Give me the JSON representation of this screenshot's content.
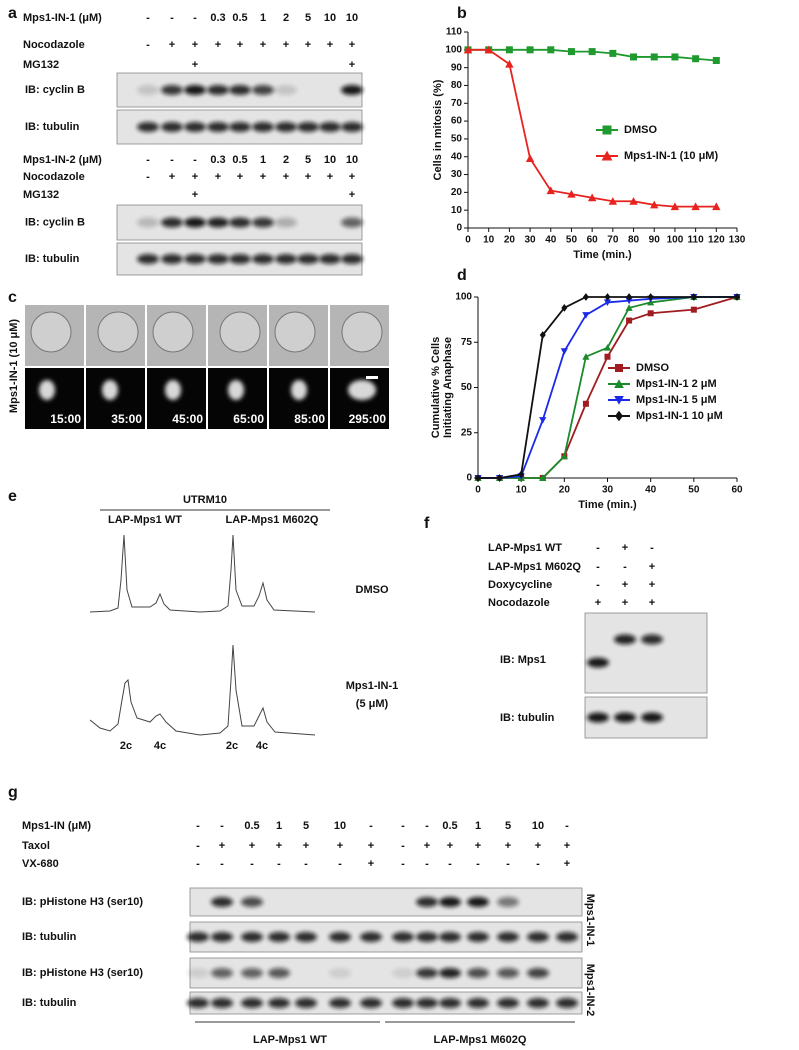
{
  "panel_labels": [
    "a",
    "b",
    "c",
    "d",
    "e",
    "f",
    "g"
  ],
  "panel_a": {
    "blocks": [
      {
        "rows": [
          {
            "label": "Mps1-IN-1 (μM)",
            "lanes": [
              "-",
              "-",
              "-",
              "0.3",
              "0.5",
              "1",
              "2",
              "5",
              "10",
              "10"
            ]
          },
          {
            "label": "Nocodazole",
            "lanes": [
              "-",
              "+",
              "+",
              "+",
              "+",
              "+",
              "+",
              "+",
              "+",
              "+"
            ]
          },
          {
            "label": "MG132",
            "lanes": [
              null,
              null,
              "+",
              null,
              null,
              null,
              null,
              null,
              null,
              "+"
            ]
          }
        ],
        "blots": [
          "IB: cyclin B",
          "IB: tubulin"
        ]
      },
      {
        "rows": [
          {
            "label": "Mps1-IN-2 (μM)",
            "lanes": [
              "-",
              "-",
              "-",
              "0.3",
              "0.5",
              "1",
              "2",
              "5",
              "10",
              "10"
            ]
          },
          {
            "label": "Nocodazole",
            "lanes": [
              "-",
              "+",
              "+",
              "+",
              "+",
              "+",
              "+",
              "+",
              "+",
              "+"
            ]
          },
          {
            "label": "MG132",
            "lanes": [
              null,
              null,
              "+",
              null,
              null,
              null,
              null,
              null,
              null,
              "+"
            ]
          }
        ],
        "blots": [
          "IB: cyclin B",
          "IB: tubulin"
        ]
      }
    ]
  },
  "panel_c": {
    "label": "Mps1-IN-1 (10 μM)",
    "times": [
      "15:00",
      "35:00",
      "45:00",
      "65:00",
      "85:00",
      "295:00"
    ]
  },
  "panel_e": {
    "header": "UTRM10",
    "columns": [
      "LAP-Mps1 WT",
      "LAP-Mps1 M602Q"
    ],
    "rows": [
      [
        "DMSO"
      ],
      [
        "Mps1-IN-1",
        "(5 μM)"
      ]
    ],
    "x_labels": [
      "2c",
      "4c"
    ]
  },
  "panel_f": {
    "rows": [
      {
        "label": "LAP-Mps1 WT",
        "lanes": [
          "-",
          "+",
          "-"
        ]
      },
      {
        "label": "LAP-Mps1 M602Q",
        "lanes": [
          "-",
          "-",
          "+"
        ]
      },
      {
        "label": "Doxycycline",
        "lanes": [
          "-",
          "+",
          "+"
        ]
      },
      {
        "label": "Nocodazole",
        "lanes": [
          "+",
          "+",
          "+"
        ]
      }
    ],
    "blots": [
      "IB: Mps1",
      "IB: tubulin"
    ]
  },
  "panel_g": {
    "rows": [
      {
        "label": "Mps1-IN (μM)",
        "lanes": [
          "-",
          "-",
          "0.5",
          "1",
          "5",
          "10",
          "-",
          "-",
          "-",
          "0.5",
          "1",
          "5",
          "10",
          "-"
        ]
      },
      {
        "label": "Taxol",
        "lanes": [
          "-",
          "+",
          "+",
          "+",
          "+",
          "+",
          "+",
          "-",
          "+",
          "+",
          "+",
          "+",
          "+",
          "+"
        ]
      },
      {
        "label": "VX-680",
        "lanes": [
          "-",
          "-",
          "-",
          "-",
          "-",
          "-",
          "+",
          "-",
          "-",
          "-",
          "-",
          "-",
          "-",
          "+"
        ]
      }
    ],
    "blots": [
      "IB: pHistone H3 (ser10)",
      "IB: tubulin",
      "IB: pHistone H3 (ser10)",
      "IB: tubulin"
    ],
    "side_labels": [
      "Mps1-IN-1",
      "Mps1-IN-2"
    ],
    "groups": [
      "LAP-Mps1 WT",
      "LAP-Mps1 M602Q"
    ]
  },
  "chart_data": [
    {
      "type": "line",
      "x_label": "Time (min.)",
      "y_label": [
        "Cells in mitosis (%)"
      ],
      "x": [
        0,
        10,
        20,
        30,
        40,
        50,
        60,
        70,
        80,
        90,
        100,
        110,
        120
      ],
      "xlim": [
        0,
        130
      ],
      "ylim": [
        0,
        110
      ],
      "xticks": [
        0,
        10,
        20,
        30,
        40,
        50,
        60,
        70,
        80,
        90,
        100,
        110,
        120,
        130
      ],
      "yticks": [
        0,
        10,
        20,
        30,
        40,
        50,
        60,
        70,
        80,
        90,
        100,
        110
      ],
      "legend": "right",
      "series": [
        {
          "name": "DMSO",
          "color": "#1f9a2e",
          "marker": "square",
          "values": [
            100,
            100,
            100,
            100,
            100,
            99,
            99,
            98,
            96,
            96,
            96,
            95,
            94
          ]
        },
        {
          "name": "Mps1-IN-1 (10 μM)",
          "color": "#e8231f",
          "marker": "triangle",
          "values": [
            100,
            100,
            92,
            39,
            21,
            19,
            17,
            15,
            15,
            13,
            12,
            12,
            12
          ]
        }
      ]
    },
    {
      "type": "line",
      "x_label": "Time (min.)",
      "y_label": [
        "Cumulative % Cells",
        "Initiating Anaphase"
      ],
      "x": [
        0,
        5,
        10,
        15,
        20,
        25,
        30,
        35,
        40,
        50,
        60
      ],
      "xlim": [
        0,
        60
      ],
      "ylim": [
        0,
        100
      ],
      "xticks": [
        0,
        10,
        20,
        30,
        40,
        50,
        60
      ],
      "yticks": [
        0,
        25,
        50,
        75,
        100
      ],
      "legend": "right",
      "series": [
        {
          "name": "DMSO",
          "color": "#a01c20",
          "marker": "square",
          "values": [
            0,
            0,
            0,
            0,
            12,
            41,
            67,
            87,
            91,
            93,
            100
          ]
        },
        {
          "name": "Mps1-IN-1 2 μM",
          "color": "#1a8a2a",
          "marker": "triangle",
          "values": [
            0,
            0,
            0,
            0,
            12,
            67,
            72,
            94,
            97,
            100,
            100
          ]
        },
        {
          "name": "Mps1-IN-1 5 μM",
          "color": "#1a2ae8",
          "marker": "triangle-down",
          "values": [
            0,
            0,
            1,
            32,
            70,
            90,
            97,
            98,
            99,
            100,
            100
          ]
        },
        {
          "name": "Mps1-IN-1 10 μM",
          "color": "#111111",
          "marker": "diamond",
          "values": [
            0,
            0,
            2,
            79,
            94,
            100,
            100,
            100,
            100,
            100,
            100
          ]
        }
      ]
    }
  ]
}
